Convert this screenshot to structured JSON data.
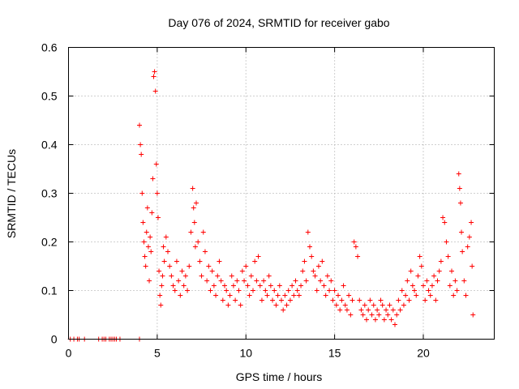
{
  "chart_data": {
    "type": "scatter",
    "title": "Day 076 of 2024, SRMTID for receiver gabo",
    "xlabel": "GPS time / hours",
    "ylabel": "SRMTID / TECUs",
    "xlim": [
      0,
      24
    ],
    "ylim": [
      0,
      0.6
    ],
    "xticks": [
      0,
      5,
      10,
      15,
      20
    ],
    "xtick_labels": [
      "0",
      "5",
      "10",
      "15",
      "20"
    ],
    "yticks": [
      0,
      0.1,
      0.2,
      0.3,
      0.4,
      0.5,
      0.6
    ],
    "ytick_labels": [
      "0",
      "0.1",
      "0.2",
      "0.3",
      "0.4",
      "0.5",
      "0.6"
    ],
    "grid": true,
    "marker": "plus",
    "series": [
      {
        "name": "SRMTID",
        "color": "#ff0000",
        "x": [
          0.1,
          0.3,
          0.5,
          0.6,
          0.9,
          1.7,
          1.9,
          2.0,
          2.1,
          2.3,
          2.4,
          2.5,
          2.6,
          2.7,
          2.9,
          4.0,
          4.0,
          4.05,
          4.1,
          4.15,
          4.2,
          4.25,
          4.3,
          4.35,
          4.4,
          4.45,
          4.5,
          4.55,
          4.6,
          4.65,
          4.7,
          4.75,
          4.8,
          4.85,
          4.9,
          4.95,
          5.0,
          5.05,
          5.1,
          5.15,
          5.2,
          5.25,
          5.3,
          5.35,
          5.4,
          5.5,
          5.6,
          5.7,
          5.8,
          5.9,
          6.0,
          6.1,
          6.2,
          6.3,
          6.4,
          6.5,
          6.6,
          6.7,
          6.8,
          6.9,
          7.0,
          7.05,
          7.1,
          7.15,
          7.2,
          7.3,
          7.4,
          7.5,
          7.6,
          7.7,
          7.8,
          7.9,
          8.0,
          8.1,
          8.2,
          8.3,
          8.4,
          8.5,
          8.6,
          8.7,
          8.8,
          8.9,
          9.0,
          9.1,
          9.2,
          9.3,
          9.4,
          9.5,
          9.6,
          9.7,
          9.8,
          9.9,
          10.0,
          10.1,
          10.2,
          10.3,
          10.4,
          10.5,
          10.6,
          10.7,
          10.8,
          10.9,
          11.0,
          11.1,
          11.2,
          11.3,
          11.4,
          11.5,
          11.6,
          11.7,
          11.8,
          11.9,
          12.0,
          12.1,
          12.2,
          12.3,
          12.4,
          12.5,
          12.6,
          12.7,
          12.8,
          12.9,
          13.0,
          13.1,
          13.2,
          13.3,
          13.4,
          13.5,
          13.6,
          13.7,
          13.8,
          13.9,
          14.0,
          14.1,
          14.2,
          14.3,
          14.4,
          14.5,
          14.6,
          14.7,
          14.8,
          14.9,
          15.0,
          15.1,
          15.2,
          15.3,
          15.4,
          15.5,
          15.6,
          15.7,
          15.8,
          15.9,
          16.0,
          16.1,
          16.2,
          16.3,
          16.4,
          16.5,
          16.6,
          16.7,
          16.8,
          16.9,
          17.0,
          17.1,
          17.2,
          17.3,
          17.4,
          17.5,
          17.6,
          17.7,
          17.8,
          17.9,
          18.0,
          18.1,
          18.2,
          18.3,
          18.4,
          18.5,
          18.6,
          18.7,
          18.8,
          18.9,
          19.0,
          19.1,
          19.2,
          19.3,
          19.4,
          19.5,
          19.6,
          19.7,
          19.8,
          19.9,
          20.0,
          20.1,
          20.2,
          20.3,
          20.4,
          20.5,
          20.6,
          20.7,
          20.8,
          20.9,
          21.0,
          21.1,
          21.2,
          21.3,
          21.4,
          21.5,
          21.6,
          21.7,
          21.8,
          21.9,
          22.0,
          22.05,
          22.1,
          22.15,
          22.2,
          22.3,
          22.4,
          22.5,
          22.6,
          22.7,
          22.75,
          22.8
        ],
        "y": [
          0,
          0,
          0,
          0,
          0,
          0,
          0,
          0,
          0,
          0,
          0,
          0,
          0,
          0,
          0,
          0,
          0.44,
          0.4,
          0.38,
          0.3,
          0.24,
          0.2,
          0.17,
          0.15,
          0.22,
          0.27,
          0.19,
          0.12,
          0.21,
          0.18,
          0.26,
          0.33,
          0.54,
          0.55,
          0.51,
          0.36,
          0.3,
          0.25,
          0.14,
          0.09,
          0.07,
          0.11,
          0.13,
          0.19,
          0.16,
          0.21,
          0.18,
          0.15,
          0.13,
          0.11,
          0.1,
          0.16,
          0.12,
          0.09,
          0.14,
          0.11,
          0.13,
          0.1,
          0.15,
          0.22,
          0.31,
          0.27,
          0.24,
          0.19,
          0.28,
          0.2,
          0.16,
          0.13,
          0.22,
          0.18,
          0.12,
          0.15,
          0.1,
          0.14,
          0.11,
          0.09,
          0.13,
          0.16,
          0.12,
          0.08,
          0.11,
          0.1,
          0.07,
          0.09,
          0.13,
          0.11,
          0.08,
          0.12,
          0.1,
          0.07,
          0.14,
          0.12,
          0.15,
          0.11,
          0.09,
          0.13,
          0.1,
          0.16,
          0.12,
          0.17,
          0.11,
          0.08,
          0.12,
          0.1,
          0.09,
          0.13,
          0.11,
          0.08,
          0.1,
          0.07,
          0.09,
          0.11,
          0.08,
          0.06,
          0.09,
          0.07,
          0.1,
          0.08,
          0.11,
          0.09,
          0.12,
          0.1,
          0.09,
          0.11,
          0.14,
          0.16,
          0.12,
          0.22,
          0.19,
          0.17,
          0.14,
          0.13,
          0.1,
          0.15,
          0.12,
          0.16,
          0.11,
          0.09,
          0.13,
          0.1,
          0.12,
          0.08,
          0.1,
          0.07,
          0.09,
          0.06,
          0.08,
          0.11,
          0.07,
          0.06,
          0.09,
          0.05,
          0.08,
          0.2,
          0.19,
          0.17,
          0.08,
          0.06,
          0.05,
          0.07,
          0.04,
          0.06,
          0.08,
          0.05,
          0.07,
          0.04,
          0.06,
          0.05,
          0.08,
          0.07,
          0.04,
          0.06,
          0.05,
          0.07,
          0.04,
          0.06,
          0.03,
          0.05,
          0.08,
          0.06,
          0.1,
          0.07,
          0.09,
          0.12,
          0.08,
          0.14,
          0.11,
          0.1,
          0.09,
          0.13,
          0.17,
          0.15,
          0.11,
          0.08,
          0.12,
          0.1,
          0.09,
          0.11,
          0.13,
          0.08,
          0.12,
          0.14,
          0.16,
          0.25,
          0.24,
          0.2,
          0.17,
          0.11,
          0.14,
          0.09,
          0.12,
          0.1,
          0.34,
          0.31,
          0.28,
          0.22,
          0.18,
          0.12,
          0.09,
          0.19,
          0.21,
          0.24,
          0.15,
          0.05
        ]
      }
    ]
  }
}
